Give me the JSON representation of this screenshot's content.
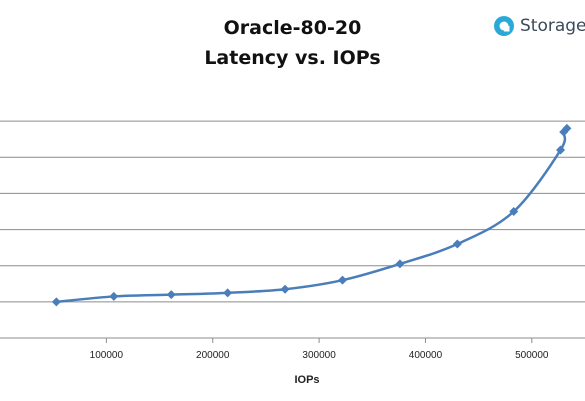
{
  "logo": {
    "text": "Storage",
    "color": "#2aa9d6",
    "icon": "storage-logo-icon"
  },
  "chart_data": {
    "type": "line",
    "title": "Oracle-80-20",
    "subtitle": "Latency vs. IOPs",
    "xlabel": "IOPs",
    "ylabel": "",
    "xlim": [
      0,
      550000
    ],
    "x_ticks": [
      100000,
      200000,
      300000,
      400000,
      500000
    ],
    "x_tick_labels": [
      "100000",
      "200000",
      "300000",
      "400000",
      "500000"
    ],
    "ylim": [
      0,
      7
    ],
    "y_gridlines": [
      1,
      2,
      3,
      4,
      5,
      6
    ],
    "grid": true,
    "legend": "none",
    "series_color": "#4a7ebb",
    "x": [
      53000,
      107000,
      161000,
      214000,
      268000,
      322000,
      376000,
      430000,
      483000,
      527000,
      530000,
      533000
    ],
    "y": [
      1.0,
      1.15,
      1.2,
      1.25,
      1.35,
      1.6,
      2.05,
      2.6,
      3.5,
      5.2,
      5.7,
      5.8
    ]
  }
}
